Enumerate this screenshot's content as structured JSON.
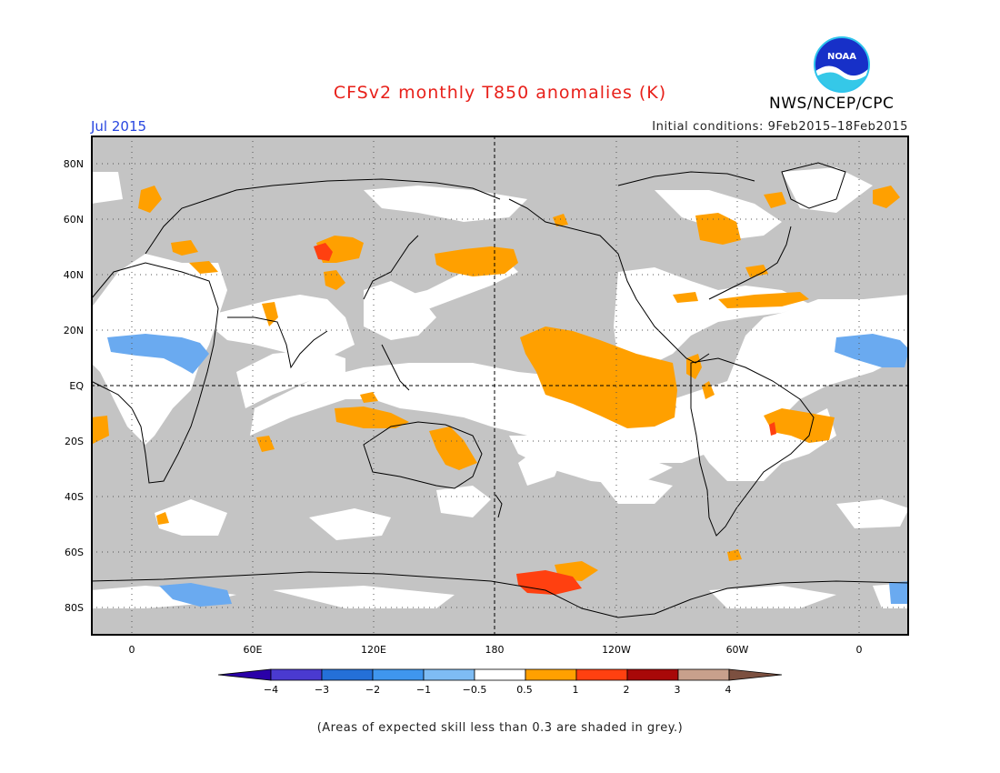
{
  "header": {
    "title": "CFSv2 monthly T850 anomalies (K)",
    "agency": "NWS/NCEP/CPC",
    "valid_month": "Jul 2015",
    "initial_conditions": "Initial conditions: 9Feb2015–18Feb2015",
    "logo_icon": "noaa-logo-icon",
    "logo_text": "NOAA"
  },
  "map": {
    "lat_labels": [
      "80N",
      "60N",
      "40N",
      "20N",
      "EQ",
      "20S",
      "40S",
      "60S",
      "80S"
    ],
    "lon_labels": [
      "0",
      "60E",
      "120E",
      "180",
      "120W",
      "60W",
      "0"
    ],
    "colors": {
      "grey_low_skill": "#c4c4c4",
      "neutral": "#ffffff",
      "light_blue": "#6aaaf0",
      "orange": "#ffa000",
      "red_orange": "#ff4010"
    }
  },
  "colorbar": {
    "labels": [
      "−4",
      "−3",
      "−2",
      "−1",
      "−0.5",
      "0.5",
      "1",
      "2",
      "3",
      "4"
    ],
    "colors": [
      "#2a00a8",
      "#4a3ad0",
      "#2470d8",
      "#3f96ee",
      "#7ebcf4",
      "#ffffff",
      "#ffa000",
      "#ff4010",
      "#a80808",
      "#c8a08c",
      "#7c5040"
    ]
  },
  "footnote": "(Areas of expected skill less than 0.3 are shaded in grey.)"
}
